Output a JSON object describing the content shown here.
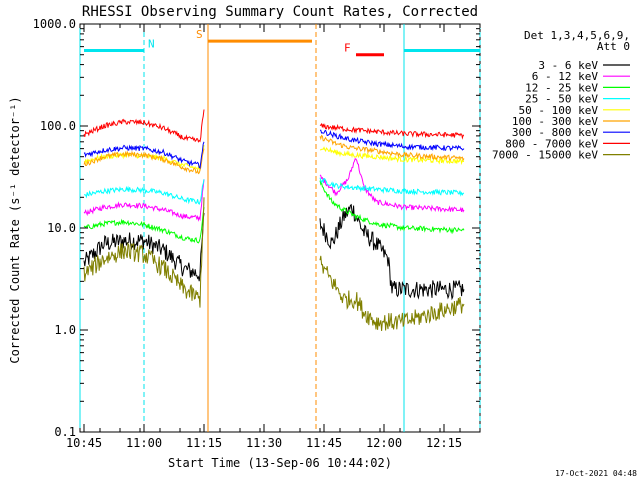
{
  "chart_data": {
    "type": "line",
    "title": "RHESSI Observing Summary Count Rates, Corrected",
    "xlabel": "Start Time (13-Sep-06 10:44:02)",
    "ylabel": "Corrected Count Rate (s⁻¹ detector⁻¹)",
    "yscale": "log",
    "ylim": [
      0.1,
      1000
    ],
    "xlim": [
      "10:44",
      "12:24"
    ],
    "x_ticks": [
      "10:45",
      "11:00",
      "11:15",
      "11:30",
      "11:45",
      "12:00",
      "12:15"
    ],
    "y_ticks": [
      "0.1",
      "1.0",
      "10.0",
      "100.0",
      "1000.0"
    ],
    "grid": false,
    "legend": {
      "position": "right",
      "header": [
        "Det 1,3,4,5,6,9,",
        "Att 0"
      ]
    },
    "series": [
      {
        "name": "3 - 6 keV",
        "color": "#000000",
        "segments": [
          [
            [
              "10:45",
              4.5
            ],
            [
              "10:50",
              7
            ],
            [
              "10:55",
              7.5
            ],
            [
              "11:00",
              7.5
            ],
            [
              "11:05",
              6
            ],
            [
              "11:10",
              4
            ],
            [
              "11:14",
              3.5
            ],
            [
              "11:15",
              14
            ]
          ],
          [
            [
              "11:44",
              11
            ],
            [
              "11:47",
              7
            ],
            [
              "11:50",
              13
            ],
            [
              "11:52",
              16
            ],
            [
              "11:55",
              9
            ],
            [
              "11:58",
              7
            ],
            [
              "12:01",
              5
            ],
            [
              "12:02",
              2.5
            ],
            [
              "12:10",
              2.5
            ],
            [
              "12:20",
              2.5
            ]
          ]
        ]
      },
      {
        "name": "6 - 12 keV",
        "color": "#ff00ff",
        "segments": [
          [
            [
              "10:45",
              14
            ],
            [
              "10:50",
              16
            ],
            [
              "10:55",
              17
            ],
            [
              "11:00",
              16.5
            ],
            [
              "11:05",
              15
            ],
            [
              "11:10",
              13
            ],
            [
              "11:14",
              12.5
            ],
            [
              "11:15",
              30
            ]
          ],
          [
            [
              "11:44",
              32
            ],
            [
              "11:48",
              22
            ],
            [
              "11:51",
              30
            ],
            [
              "11:53",
              50
            ],
            [
              "11:55",
              25
            ],
            [
              "11:58",
              18
            ],
            [
              "12:05",
              16
            ],
            [
              "12:20",
              15
            ]
          ]
        ]
      },
      {
        "name": "12 - 25 keV",
        "color": "#00ff00",
        "segments": [
          [
            [
              "10:45",
              10
            ],
            [
              "10:50",
              11
            ],
            [
              "10:55",
              11.5
            ],
            [
              "11:00",
              10.8
            ],
            [
              "11:05",
              9.5
            ],
            [
              "11:10",
              8
            ],
            [
              "11:14",
              7.5
            ],
            [
              "11:15",
              16
            ]
          ],
          [
            [
              "11:44",
              28
            ],
            [
              "11:47",
              18
            ],
            [
              "11:50",
              15
            ],
            [
              "11:53",
              13
            ],
            [
              "11:58",
              11
            ],
            [
              "12:05",
              10
            ],
            [
              "12:20",
              9.5
            ]
          ]
        ]
      },
      {
        "name": "25 - 50 keV",
        "color": "#00ffff",
        "segments": [
          [
            [
              "10:45",
              21
            ],
            [
              "10:50",
              23
            ],
            [
              "10:55",
              24
            ],
            [
              "11:00",
              23.5
            ],
            [
              "11:05",
              22
            ],
            [
              "11:10",
              19
            ],
            [
              "11:14",
              18
            ],
            [
              "11:15",
              30
            ]
          ],
          [
            [
              "11:44",
              30
            ],
            [
              "11:48",
              26
            ],
            [
              "11:52",
              25
            ],
            [
              "11:58",
              24
            ],
            [
              "12:05",
              23
            ],
            [
              "12:20",
              22
            ]
          ]
        ]
      },
      {
        "name": "50 - 100 keV",
        "color": "#ffff00",
        "segments": [
          [
            [
              "10:45",
              45
            ],
            [
              "10:50",
              50
            ],
            [
              "10:55",
              52
            ],
            [
              "11:00",
              51
            ],
            [
              "11:05",
              48
            ],
            [
              "11:10",
              41
            ],
            [
              "11:14",
              38
            ],
            [
              "11:15",
              65
            ]
          ],
          [
            [
              "11:44",
              62
            ],
            [
              "11:48",
              55
            ],
            [
              "11:52",
              52
            ],
            [
              "11:58",
              50
            ],
            [
              "12:05",
              47
            ],
            [
              "12:20",
              45
            ]
          ]
        ]
      },
      {
        "name": "100 - 300 keV",
        "color": "#ffa500",
        "segments": [
          [
            [
              "10:45",
              42
            ],
            [
              "10:50",
              50
            ],
            [
              "10:55",
              53
            ],
            [
              "11:00",
              52
            ],
            [
              "11:05",
              47
            ],
            [
              "11:10",
              39
            ],
            [
              "11:14",
              35
            ],
            [
              "11:15",
              60
            ]
          ],
          [
            [
              "11:44",
              78
            ],
            [
              "11:48",
              67
            ],
            [
              "11:52",
              61
            ],
            [
              "11:58",
              57
            ],
            [
              "12:05",
              52
            ],
            [
              "12:20",
              48
            ]
          ]
        ]
      },
      {
        "name": "300 - 800 keV",
        "color": "#0000ff",
        "segments": [
          [
            [
              "10:45",
              52
            ],
            [
              "10:50",
              58
            ],
            [
              "10:55",
              61
            ],
            [
              "11:00",
              60
            ],
            [
              "11:05",
              55
            ],
            [
              "11:10",
              45
            ],
            [
              "11:14",
              41
            ],
            [
              "11:15",
              70
            ]
          ],
          [
            [
              "11:44",
              90
            ],
            [
              "11:48",
              80
            ],
            [
              "11:52",
              73
            ],
            [
              "11:58",
              67
            ],
            [
              "12:05",
              63
            ],
            [
              "12:20",
              60
            ]
          ]
        ]
      },
      {
        "name": "800 - 7000 keV",
        "color": "#ff0000",
        "segments": [
          [
            [
              "10:45",
              82
            ],
            [
              "10:50",
              100
            ],
            [
              "10:55",
              110
            ],
            [
              "11:00",
              108
            ],
            [
              "11:05",
              95
            ],
            [
              "11:10",
              76
            ],
            [
              "11:14",
              71
            ],
            [
              "11:15",
              145
            ]
          ],
          [
            [
              "11:44",
              100
            ],
            [
              "11:48",
              96
            ],
            [
              "11:52",
              92
            ],
            [
              "11:58",
              88
            ],
            [
              "12:05",
              84
            ],
            [
              "12:20",
              81
            ]
          ]
        ]
      },
      {
        "name": "7000 - 15000 keV",
        "color": "#808000",
        "segments": [
          [
            [
              "10:45",
              3.5
            ],
            [
              "10:50",
              5
            ],
            [
              "10:55",
              6
            ],
            [
              "11:00",
              5.5
            ],
            [
              "11:05",
              4
            ],
            [
              "11:10",
              2.5
            ],
            [
              "11:14",
              2
            ],
            [
              "11:15",
              20
            ]
          ],
          [
            [
              "11:44",
              4.5
            ],
            [
              "11:47",
              3
            ],
            [
              "11:50",
              2
            ],
            [
              "11:53",
              2
            ],
            [
              "11:55",
              1.5
            ],
            [
              "11:58",
              1.2
            ],
            [
              "12:05",
              1.2
            ],
            [
              "12:20",
              1.8
            ]
          ]
        ]
      }
    ],
    "annotations": [
      {
        "label": "N",
        "color": "#00e5ee",
        "bar": [
          "10:45",
          "11:00"
        ],
        "level": 550,
        "lines": [
          [
            "10:44",
            "solid"
          ],
          [
            "11:00",
            "dashed"
          ]
        ]
      },
      {
        "label": "S",
        "color": "#ff8c00",
        "bar": [
          "11:16",
          "11:42"
        ],
        "level": 680,
        "lines": [
          [
            "11:16",
            "solid"
          ],
          [
            "11:43",
            "dashed"
          ]
        ]
      },
      {
        "label": "F",
        "color": "#ff0000",
        "bar": [
          "11:53",
          "12:00"
        ],
        "level": 500,
        "lines": []
      },
      {
        "label": "",
        "color": "#00e5ee",
        "bar": [
          "12:05",
          "12:24"
        ],
        "level": 550,
        "lines": [
          [
            "12:05",
            "solid"
          ],
          [
            "12:24",
            "dashed"
          ]
        ]
      }
    ]
  },
  "footer": {
    "timestamp": "17-Oct-2021 04:48"
  }
}
